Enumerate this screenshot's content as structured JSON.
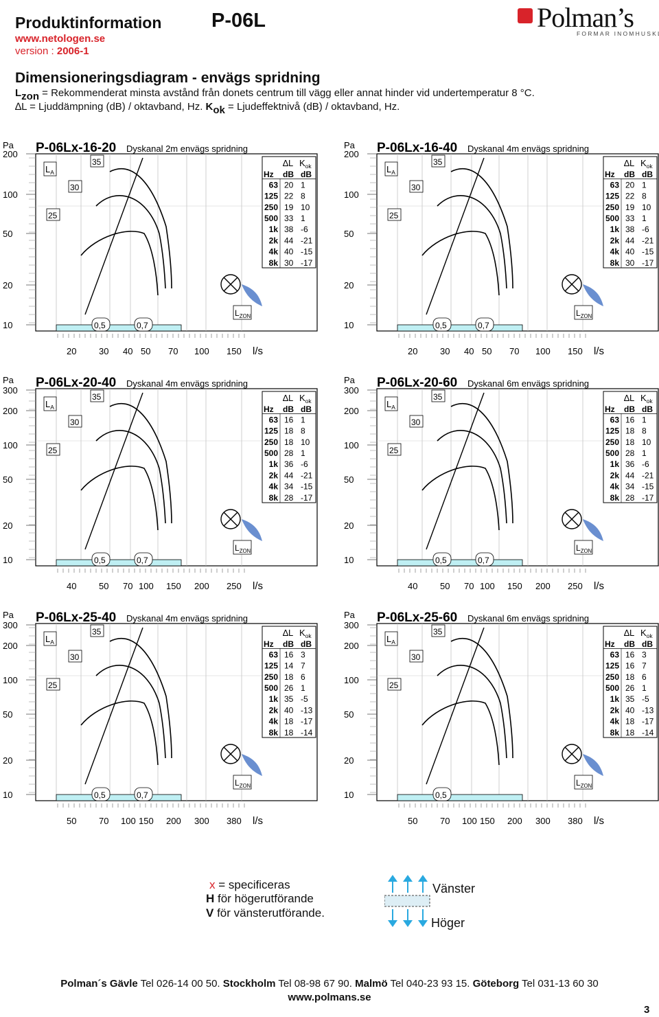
{
  "header": {
    "title": "Produktinformation",
    "model": "P-06L",
    "website": "www.netologen.se",
    "version_label": "version :",
    "version_value": "2006-1",
    "logo_text": "Polman’s",
    "logo_tagline": "FORMAR INOMHUSKLIMAT"
  },
  "section": {
    "title": "Dimensioneringsdiagram - envägs spridning",
    "line1_sym": "L",
    "line1_sub": "zon",
    "line1_text": " = Rekommenderat minsta avstånd från donets centrum till vägg eller annat hinder vid undertemperatur 8 °C.",
    "line2_a": "∆L = Ljuddämpning (dB) / oktavband, Hz. ",
    "line2_sym": "K",
    "line2_sub": "ok",
    "line2_b": " = Ljudeffektnivå (dB) / oktavband, Hz."
  },
  "colors": {
    "accent_red": "#d8232a",
    "cyan": "#bfeff3",
    "blue_arrow": "#29a9e0",
    "fan_blue": "#6a8fd0"
  },
  "common": {
    "pa_label": "Pa",
    "unit_label": "l/s",
    "la_label": "L",
    "la_sub": "A",
    "lzon_label": "L",
    "lzon_sub": "ZON",
    "table_dl": "∆L",
    "table_kok": "K",
    "table_kok_sub": "ok",
    "col_hz": "Hz",
    "col_db1": "dB",
    "col_db2": "dB",
    "curve_labels": [
      "25",
      "30",
      "35"
    ]
  },
  "chart_data": [
    {
      "type": "line",
      "title_code": "P-06Lx-16-20",
      "title_desc": "Dyskanal 2m envägs spridning",
      "y_ticks": [
        "200",
        "100",
        "50",
        "20",
        "10"
      ],
      "x_ticks": [
        "20",
        "30",
        "40",
        "50",
        "70",
        "100",
        "150"
      ],
      "zone_labels": [
        "0,5",
        "0,7"
      ],
      "table": {
        "hz": [
          "63",
          "125",
          "250",
          "500",
          "1k",
          "2k",
          "4k",
          "8k"
        ],
        "dl": [
          "20",
          "22",
          "19",
          "33",
          "38",
          "44",
          "40",
          "30"
        ],
        "kok": [
          "1",
          "8",
          "10",
          "1",
          "-6",
          "-21",
          "-15",
          "-17"
        ]
      }
    },
    {
      "type": "line",
      "title_code": "P-06Lx-16-40",
      "title_desc": "Dyskanal 4m envägs spridning",
      "y_ticks": [
        "200",
        "100",
        "50",
        "20",
        "10"
      ],
      "x_ticks": [
        "20",
        "30",
        "40",
        "50",
        "70",
        "100",
        "150"
      ],
      "zone_labels": [
        "0,5",
        "0,7"
      ],
      "table": {
        "hz": [
          "63",
          "125",
          "250",
          "500",
          "1k",
          "2k",
          "4k",
          "8k"
        ],
        "dl": [
          "20",
          "22",
          "19",
          "33",
          "38",
          "44",
          "40",
          "30"
        ],
        "kok": [
          "1",
          "8",
          "10",
          "1",
          "-6",
          "-21",
          "-15",
          "-17"
        ]
      }
    },
    {
      "type": "line",
      "title_code": "P-06Lx-20-40",
      "title_desc": "Dyskanal 4m envägs spridning",
      "y_ticks": [
        "300",
        "200",
        "100",
        "50",
        "20",
        "10"
      ],
      "x_ticks": [
        "40",
        "50",
        "70",
        "100",
        "150",
        "200",
        "250"
      ],
      "zone_labels": [
        "0,5",
        "0,7"
      ],
      "table": {
        "hz": [
          "63",
          "125",
          "250",
          "500",
          "1k",
          "2k",
          "4k",
          "8k"
        ],
        "dl": [
          "16",
          "18",
          "18",
          "28",
          "36",
          "44",
          "34",
          "28"
        ],
        "kok": [
          "1",
          "8",
          "10",
          "1",
          "-6",
          "-21",
          "-15",
          "-17"
        ]
      }
    },
    {
      "type": "line",
      "title_code": "P-06Lx-20-60",
      "title_desc": "Dyskanal 6m envägs spridning",
      "y_ticks": [
        "300",
        "200",
        "100",
        "50",
        "20",
        "10"
      ],
      "x_ticks": [
        "40",
        "50",
        "70",
        "100",
        "150",
        "200",
        "250"
      ],
      "zone_labels": [
        "0,5",
        "0,7"
      ],
      "table": {
        "hz": [
          "63",
          "125",
          "250",
          "500",
          "1k",
          "2k",
          "4k",
          "8k"
        ],
        "dl": [
          "16",
          "18",
          "18",
          "28",
          "36",
          "44",
          "34",
          "28"
        ],
        "kok": [
          "1",
          "8",
          "10",
          "1",
          "-6",
          "-21",
          "-15",
          "-17"
        ]
      }
    },
    {
      "type": "line",
      "title_code": "P-06Lx-25-40",
      "title_desc": "Dyskanal 4m envägs spridning",
      "y_ticks": [
        "300",
        "200",
        "100",
        "50",
        "20",
        "10"
      ],
      "x_ticks": [
        "50",
        "70",
        "100",
        "150",
        "200",
        "300",
        "380"
      ],
      "zone_labels": [
        "0,5",
        "0,7"
      ],
      "table": {
        "hz": [
          "63",
          "125",
          "250",
          "500",
          "1k",
          "2k",
          "4k",
          "8k"
        ],
        "dl": [
          "16",
          "14",
          "18",
          "26",
          "35",
          "40",
          "18",
          "18"
        ],
        "kok": [
          "3",
          "7",
          "6",
          "1",
          "-5",
          "-13",
          "-17",
          "-14"
        ]
      }
    },
    {
      "type": "line",
      "title_code": "P-06Lx-25-60",
      "title_desc": "Dyskanal 6m envägs spridning",
      "y_ticks": [
        "300",
        "200",
        "100",
        "50",
        "20",
        "10"
      ],
      "x_ticks": [
        "50",
        "70",
        "100",
        "150",
        "200",
        "300",
        "380"
      ],
      "zone_labels": [
        "0,5"
      ],
      "table": {
        "hz": [
          "63",
          "125",
          "250",
          "500",
          "1k",
          "2k",
          "4k",
          "8k"
        ],
        "dl": [
          "16",
          "16",
          "18",
          "26",
          "35",
          "40",
          "18",
          "18"
        ],
        "kok": [
          "3",
          "7",
          "6",
          "1",
          "-5",
          "-13",
          "-17",
          "-14"
        ]
      }
    }
  ],
  "legend": {
    "x_char": "x",
    "x_text": " = specificeras",
    "h_char": "H",
    "h_text": " för högerutförande",
    "v_char": "V",
    "v_text": " för vänsterutförande.",
    "left_label": "Vänster",
    "right_label": "Höger"
  },
  "footer": {
    "c1": "Polman´s Gävle",
    "p1": " Tel 026-14 00 50. ",
    "c2": "Stockholm",
    "p2": " Tel 08-98 67 90. ",
    "c3": "Malmö",
    "p3": " Tel 040-23 93 15. ",
    "c4": "Göteborg",
    "p4": " Tel 031-13 60 30",
    "website": "www.polmans.se",
    "page": "3"
  }
}
